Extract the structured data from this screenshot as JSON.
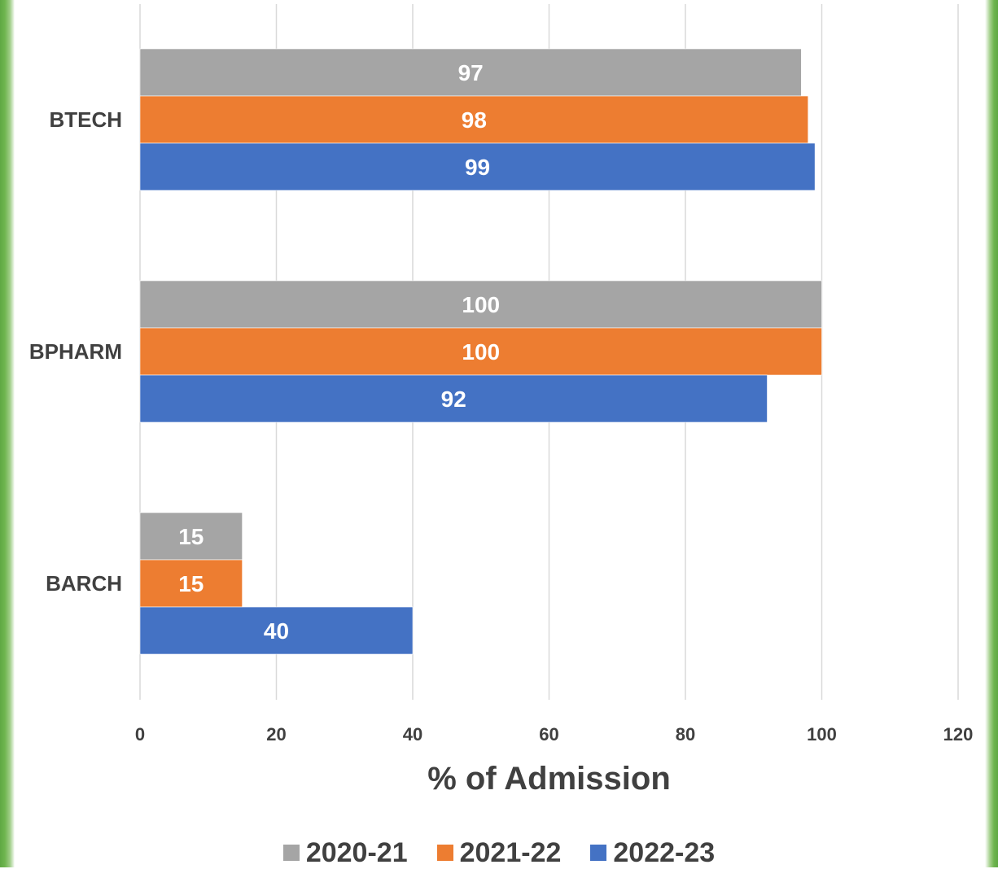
{
  "chart_data": {
    "type": "bar",
    "orientation": "horizontal",
    "categories": [
      "BTECH",
      "BPHARM",
      "BARCH"
    ],
    "series": [
      {
        "name": "2020-21",
        "color": "#a5a5a5",
        "values": [
          97,
          100,
          15
        ]
      },
      {
        "name": "2021-22",
        "color": "#ed7d31",
        "values": [
          98,
          100,
          15
        ]
      },
      {
        "name": "2022-23",
        "color": "#4472c4",
        "values": [
          99,
          92,
          40
        ]
      }
    ],
    "title": "",
    "xlabel": "% of Admission",
    "ylabel": "",
    "xlim": [
      0,
      120
    ],
    "xticks": [
      "0",
      "20",
      "40",
      "60",
      "80",
      "100",
      "120"
    ],
    "grid": "vertical",
    "legend_position": "bottom",
    "data_labels": true
  }
}
